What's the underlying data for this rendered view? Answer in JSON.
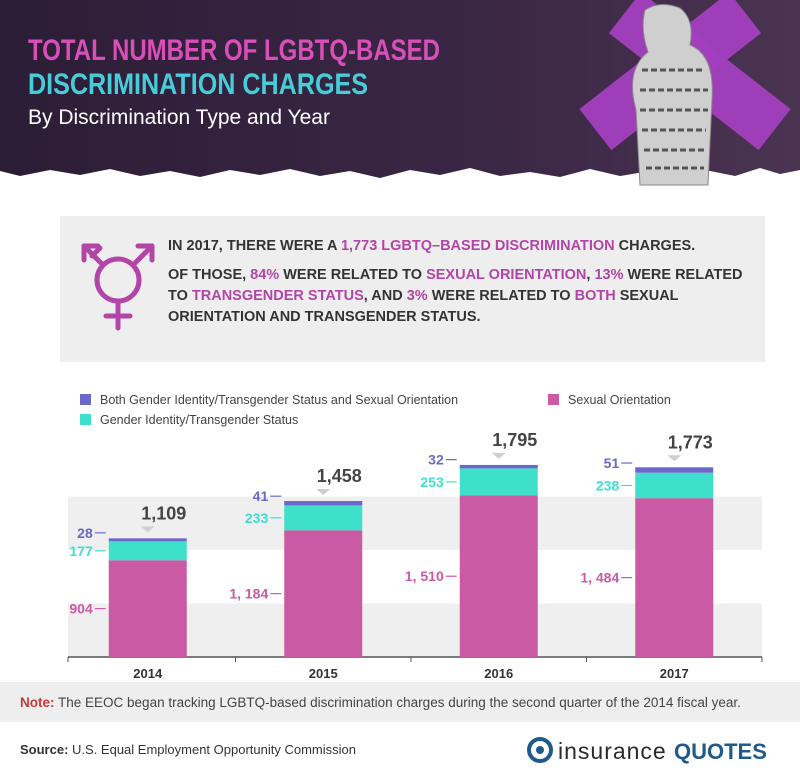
{
  "header": {
    "title_line1": "TOTAL NUMBER OF LGBTQ-BASED",
    "title_line2": "DISCRIMINATION CHARGES",
    "subtitle": "By Discrimination Type and Year"
  },
  "callout": {
    "paragraphs": [
      [
        "IN 2017, THERE WERE A ",
        "1,773 LGBTQ–BASED DISCRIMINATION",
        " CHARGES."
      ],
      [
        "OF THOSE, ",
        "84%",
        " WERE RELATED TO ",
        "SEXUAL ORIENTATION",
        ", ",
        "13%",
        " WERE RELATED TO ",
        "TRANSGENDER STATUS",
        ", AND ",
        "3%",
        " WERE RELATED TO ",
        "BOTH",
        " SEXUAL ORIENTATION AND TRANSGENDER STATUS."
      ]
    ]
  },
  "chart_data": {
    "type": "stacked_bar",
    "categories": [
      "2014",
      "2015",
      "2016",
      "2017"
    ],
    "series": [
      {
        "name": "Sexual Orientation",
        "color": "#c95aa3",
        "values": [
          904,
          1184,
          1510,
          1484
        ],
        "value_labels": [
          "904",
          "1, 184",
          "1, 510",
          "1, 484"
        ]
      },
      {
        "name": "Gender Identity/Transgender Status",
        "color": "#3ee0cc",
        "values": [
          177,
          233,
          253,
          238
        ]
      },
      {
        "name": "Both Gender Identity/Transgender Status and Sexual Orientation",
        "color": "#6b68c9",
        "values": [
          28,
          41,
          32,
          51
        ]
      }
    ],
    "totals": [
      1109,
      1458,
      1795,
      1773
    ],
    "total_labels": [
      "1,109",
      "1,458",
      "1,795",
      "1,773"
    ],
    "ylim": [
      0,
      2000
    ],
    "yticks": [
      0,
      500,
      1000,
      1500
    ],
    "grid": true
  },
  "note": {
    "label": "Note:",
    "text": "The EEOC began tracking LGBTQ-based discrimination charges during the second quarter of the 2014 fiscal year."
  },
  "source": {
    "label": "Source:",
    "text": "U.S. Equal Employment Opportunity Commission"
  },
  "logo": {
    "part1": "insurance",
    "part2": "QUOTES"
  }
}
